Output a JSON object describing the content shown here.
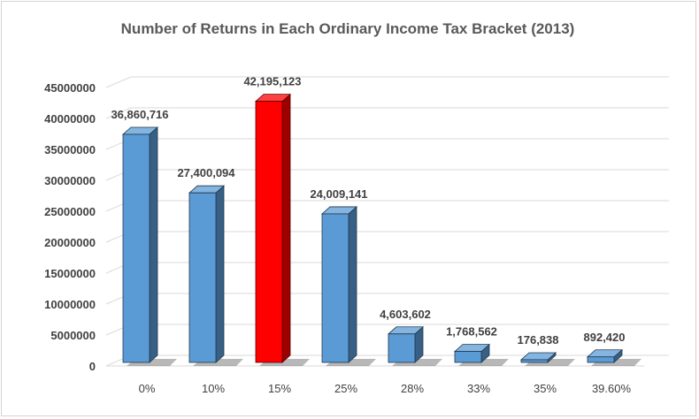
{
  "chart_data": {
    "type": "bar",
    "title": "Number of Returns in Each Ordinary Income Tax Bracket (2013)",
    "xlabel": "",
    "ylabel": "",
    "categories": [
      "0%",
      "10%",
      "15%",
      "25%",
      "28%",
      "33%",
      "35%",
      "39.60%"
    ],
    "values": [
      36860716,
      27400094,
      42195123,
      24009141,
      4603602,
      1768562,
      176838,
      892420
    ],
    "data_labels": [
      "36,860,716",
      "27,400,094",
      "42,195,123",
      "24,009,141",
      "4,603,602",
      "1,768,562",
      "176,838",
      "892,420"
    ],
    "yticks": [
      "0",
      "5000000",
      "10000000",
      "15000000",
      "20000000",
      "25000000",
      "30000000",
      "35000000",
      "40000000",
      "45000000"
    ],
    "ylim": [
      0,
      45000000
    ],
    "grid": true,
    "legend": "none",
    "colors": {
      "default": "#5b9bd5",
      "highlight": "#ff0000"
    },
    "highlight_index": 2
  }
}
